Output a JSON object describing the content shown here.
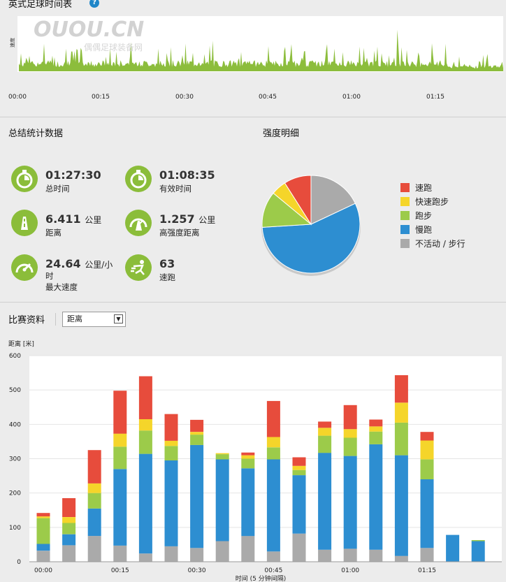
{
  "timeline": {
    "title": "英式足球时间表",
    "y_label": "速度",
    "x_ticks": [
      "00:00",
      "00:15",
      "00:30",
      "00:45",
      "01:00",
      "01:15"
    ],
    "watermark": "OUOU.CN",
    "watermark_sub": "偶偶足球装备网"
  },
  "stats": {
    "title": "总结统计数据",
    "items": [
      {
        "value": "01:27:30",
        "unit": "",
        "label": "总时间",
        "icon": "stopwatch-icon"
      },
      {
        "value": "01:08:35",
        "unit": "",
        "label": "有效时间",
        "icon": "stopwatch-icon"
      },
      {
        "value": "6.411",
        "unit": "公里",
        "label": "距离",
        "icon": "road-icon"
      },
      {
        "value": "1.257",
        "unit": "公里",
        "label": "高强度距离",
        "icon": "gauge-road-icon"
      },
      {
        "value": "24.64",
        "unit": "公里/小",
        "unit2": "时",
        "label": "最大速度",
        "icon": "speedometer-icon"
      },
      {
        "value": "63",
        "unit": "",
        "label": "速跑",
        "icon": "sprint-icon"
      }
    ]
  },
  "intensity": {
    "title": "强度明细",
    "legend": [
      {
        "label": "速跑",
        "color": "#e74c3c"
      },
      {
        "label": "快速跑步",
        "color": "#f5d52a"
      },
      {
        "label": "跑步",
        "color": "#9ccb4a"
      },
      {
        "label": "慢跑",
        "color": "#2d8ed1"
      },
      {
        "label": "不活动 / 步行",
        "color": "#aaaaaa"
      }
    ]
  },
  "match": {
    "title": "比赛资料",
    "select_value": "距离"
  },
  "chart_data": [
    {
      "type": "pie",
      "title": "强度明细",
      "labels": [
        "速跑",
        "快速跑步",
        "跑步",
        "慢跑",
        "不活动 / 步行"
      ],
      "values": [
        9,
        5,
        12,
        56,
        18
      ],
      "colors": [
        "#e74c3c",
        "#f5d52a",
        "#9ccb4a",
        "#2d8ed1",
        "#aaaaaa"
      ]
    },
    {
      "type": "bar",
      "stacked": true,
      "ylabel": "距离 [米]",
      "xlabel": "时间 (5 分钟间隔)",
      "ylim": [
        0,
        600
      ],
      "yticks": [
        0,
        100,
        200,
        300,
        400,
        500,
        600
      ],
      "x_ticks": [
        "00:00",
        "00:15",
        "00:30",
        "00:45",
        "01:00",
        "01:15"
      ],
      "categories": [
        "00:00",
        "00:05",
        "00:10",
        "00:15",
        "00:20",
        "00:25",
        "00:30",
        "00:35",
        "00:40",
        "00:45",
        "00:50",
        "00:55",
        "01:00",
        "01:05",
        "01:10",
        "01:15",
        "01:20",
        "01:25"
      ],
      "series": [
        {
          "name": "不活动 / 步行",
          "color": "#aaaaaa",
          "values": [
            32,
            48,
            75,
            47,
            24,
            45,
            40,
            60,
            75,
            30,
            82,
            35,
            38,
            35,
            17,
            40,
            0,
            0
          ]
        },
        {
          "name": "慢跑",
          "color": "#2d8ed1",
          "values": [
            20,
            32,
            80,
            223,
            290,
            250,
            300,
            238,
            197,
            268,
            170,
            282,
            270,
            307,
            293,
            200,
            78,
            60
          ]
        },
        {
          "name": "跑步",
          "color": "#9ccb4a",
          "values": [
            75,
            33,
            45,
            65,
            68,
            42,
            30,
            15,
            28,
            35,
            15,
            50,
            53,
            37,
            95,
            58,
            0,
            3
          ]
        },
        {
          "name": "快速跑步",
          "color": "#f5d52a",
          "values": [
            5,
            17,
            28,
            38,
            33,
            15,
            8,
            3,
            10,
            30,
            12,
            23,
            25,
            15,
            58,
            55,
            0,
            0
          ]
        },
        {
          "name": "速跑",
          "color": "#e74c3c",
          "values": [
            10,
            55,
            97,
            125,
            125,
            78,
            35,
            0,
            8,
            105,
            25,
            18,
            70,
            20,
            80,
            25,
            0,
            0
          ]
        }
      ]
    }
  ]
}
